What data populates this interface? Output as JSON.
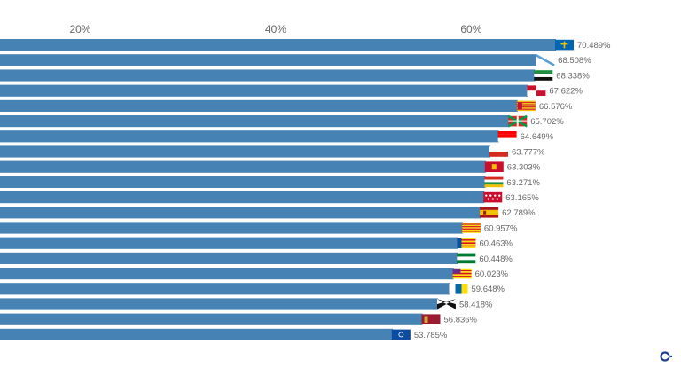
{
  "chart_data": {
    "type": "bar",
    "orientation": "horizontal",
    "title": "",
    "xlabel": "",
    "ylabel": "",
    "xlim": [
      0,
      70.489
    ],
    "x_ticks": [
      20,
      40,
      60
    ],
    "x_tick_labels": [
      "20%",
      "40%",
      "60%"
    ],
    "grid": false,
    "legend": "none",
    "bar_color": "#4682b4",
    "values": [
      70.489,
      68.508,
      68.338,
      67.622,
      66.576,
      65.702,
      64.649,
      63.777,
      63.303,
      63.271,
      63.165,
      62.789,
      60.957,
      60.463,
      60.448,
      60.023,
      59.648,
      58.418,
      56.836,
      53.785
    ],
    "value_labels": [
      "70.489%",
      "68.508%",
      "68.338%",
      "67.622%",
      "66.576%",
      "65.702%",
      "64.649%",
      "63.777%",
      "63.303%",
      "63.271%",
      "63.165%",
      "62.789%",
      "60.957%",
      "60.463%",
      "60.448%",
      "60.023%",
      "59.648%",
      "58.418%",
      "56.836%",
      "53.785%"
    ],
    "flag_icons": [
      "asturias-flag-icon",
      "galicia-flag-icon",
      "extremadura-flag-icon",
      "castilla-leon-flag-icon",
      "aragon-flag-icon",
      "pais-vasco-flag-icon",
      "cantabria-flag-icon",
      "castilla-la-mancha-flag-icon",
      "navarra-flag-icon",
      "la-rioja-flag-icon",
      "madrid-flag-icon",
      "spain-flag-icon",
      "cataluna-flag-icon",
      "valencia-flag-icon",
      "andalucia-flag-icon",
      "baleares-flag-icon",
      "canarias-flag-icon",
      "ceuta-flag-icon",
      "murcia-flag-icon",
      "melilla-flag-icon"
    ]
  },
  "logo_icon": "brand-logo-icon"
}
